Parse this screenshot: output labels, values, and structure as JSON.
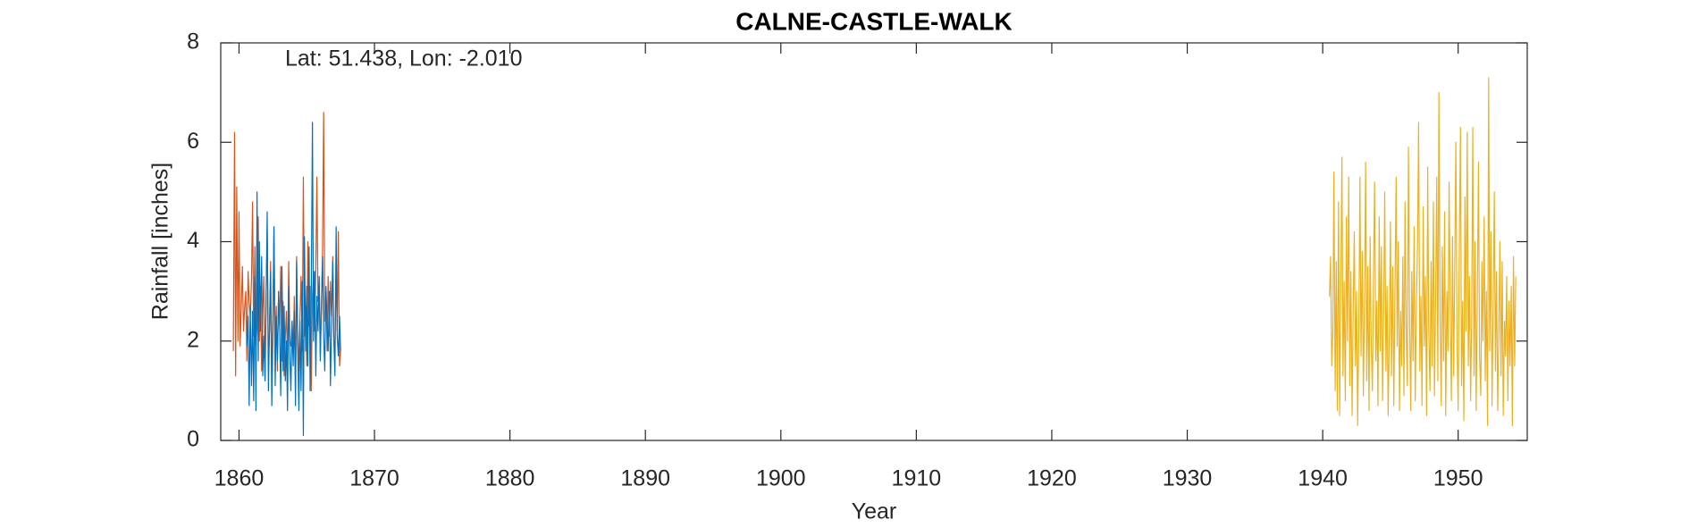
{
  "chart_data": {
    "type": "line",
    "title": "CALNE-CASTLE-WALK",
    "annotation": "Lat: 51.438, Lon: -2.010",
    "xlabel": "Year",
    "ylabel": "Rainfall [inches]",
    "xlim": [
      1858.65,
      1955.1
    ],
    "ylim": [
      0,
      8
    ],
    "xticks": [
      1860,
      1870,
      1880,
      1890,
      1900,
      1910,
      1920,
      1930,
      1940,
      1950
    ],
    "yticks": [
      0,
      2,
      4,
      6,
      8
    ],
    "grid": false,
    "box": true,
    "series": [
      {
        "color": "#D95319",
        "x": [
          1859.58,
          1859.67,
          1859.75,
          1859.83,
          1859.92,
          1860,
          1860.08,
          1860.17,
          1860.25,
          1860.33,
          1860.42,
          1860.5,
          1860.58,
          1860.67,
          1860.75,
          1860.83,
          1860.92,
          1861,
          1861.08,
          1861.17,
          1861.25,
          1861.33,
          1861.42,
          1861.5,
          1861.58,
          1861.67,
          1861.75,
          1861.83,
          1861.92,
          1862,
          1862.08,
          1862.17,
          1862.25,
          1862.33,
          1862.42,
          1862.5,
          1862.58,
          1862.67,
          1862.75,
          1862.83,
          1862.92,
          1863,
          1863.08,
          1863.17,
          1863.25,
          1863.33,
          1863.42,
          1863.5,
          1863.58,
          1863.67,
          1863.75,
          1863.83,
          1863.92,
          1864,
          1864.08,
          1864.17,
          1864.25,
          1864.33,
          1864.42,
          1864.5,
          1864.58,
          1864.67,
          1864.75,
          1864.83,
          1864.92,
          1865,
          1865.08,
          1865.17,
          1865.25,
          1865.33,
          1865.42,
          1865.5,
          1865.58,
          1865.67,
          1865.75,
          1865.83,
          1865.92,
          1866,
          1866.08,
          1866.17,
          1866.25,
          1866.33,
          1866.42,
          1866.5,
          1866.58,
          1866.67,
          1866.75,
          1866.83,
          1866.92,
          1867,
          1867.08,
          1867.17,
          1867.25,
          1867.33,
          1867.42,
          1867.5
        ],
        "values": [
          1.8,
          6.2,
          1.3,
          5.1,
          2.0,
          4.6,
          1.9,
          2.7,
          3.5,
          2.2,
          2.7,
          3.0,
          1.6,
          3.4,
          2.8,
          2.5,
          3.2,
          4.8,
          2.1,
          3.9,
          1.9,
          2.3,
          4.5,
          2.0,
          3.1,
          1.4,
          2.6,
          3.3,
          1.2,
          2.9,
          4.2,
          1.5,
          2.2,
          3.6,
          1.1,
          2.4,
          4.3,
          1.8,
          2.7,
          1.4,
          3.0,
          2.3,
          3.5,
          1.6,
          2.8,
          1.3,
          2.1,
          2.6,
          1.5,
          3.6,
          2.0,
          1.9,
          2.4,
          1.7,
          2.9,
          1.1,
          3.7,
          2.2,
          1.4,
          2.5,
          3.3,
          1.8,
          5.3,
          2.1,
          2.7,
          1.5,
          4.0,
          2.3,
          3.1,
          1.0,
          2.9,
          3.4,
          2.2,
          3.5,
          5.3,
          2.8,
          3.2,
          1.7,
          2.6,
          3.9,
          6.6,
          2.4,
          3.0,
          1.8,
          3.3,
          2.1,
          3.2,
          2.5,
          3.7,
          2.0,
          1.8,
          3.4,
          2.2,
          4.2,
          1.5,
          1.8
        ]
      },
      {
        "color": "#0072BD",
        "x": [
          1860.58,
          1860.67,
          1860.75,
          1860.83,
          1860.92,
          1861,
          1861.08,
          1861.17,
          1861.25,
          1861.33,
          1861.42,
          1861.5,
          1861.58,
          1861.67,
          1861.75,
          1861.83,
          1861.92,
          1862,
          1862.08,
          1862.17,
          1862.25,
          1862.33,
          1862.42,
          1862.5,
          1862.58,
          1862.67,
          1862.75,
          1862.83,
          1862.92,
          1863,
          1863.08,
          1863.17,
          1863.25,
          1863.33,
          1863.42,
          1863.5,
          1863.58,
          1863.67,
          1863.75,
          1863.83,
          1863.92,
          1864,
          1864.08,
          1864.17,
          1864.25,
          1864.33,
          1864.42,
          1864.5,
          1864.58,
          1864.67,
          1864.75,
          1864.83,
          1864.92,
          1865,
          1865.08,
          1865.17,
          1865.25,
          1865.33,
          1865.42,
          1865.5,
          1865.58,
          1865.67,
          1865.75,
          1865.83,
          1865.92,
          1866,
          1866.08,
          1866.17,
          1866.25,
          1866.33,
          1866.42,
          1866.5,
          1866.58,
          1866.67,
          1866.75,
          1866.83,
          1866.92,
          1867,
          1867.08,
          1867.17,
          1867.25,
          1867.33,
          1867.42,
          1867.5
        ],
        "values": [
          1.9,
          2.5,
          0.7,
          2.7,
          1.1,
          2.6,
          0.8,
          3.3,
          0.6,
          5.0,
          1.6,
          4.0,
          2.2,
          3.7,
          1.3,
          2.1,
          1.2,
          2.8,
          4.6,
          1.0,
          2.3,
          3.4,
          0.7,
          2.1,
          4.3,
          1.1,
          2.5,
          1.6,
          3.0,
          2.2,
          0.9,
          3.5,
          1.4,
          2.7,
          1.2,
          2.0,
          0.6,
          3.1,
          1.7,
          1.0,
          2.4,
          1.5,
          2.6,
          0.7,
          3.6,
          1.9,
          0.6,
          2.4,
          1.0,
          3.2,
          0.1,
          4.1,
          1.8,
          3.1,
          1.5,
          3.9,
          1.0,
          2.8,
          6.4,
          2.0,
          3.4,
          1.3,
          2.9,
          2.2,
          3.3,
          1.6,
          2.7,
          3.7,
          2.1,
          1.4,
          3.1,
          2.4,
          1.8,
          3.0,
          1.1,
          2.3,
          3.6,
          2.0,
          1.3,
          4.3,
          2.1,
          1.7,
          2.5,
          1.8
        ]
      },
      {
        "color": "#EDB120",
        "x": [
          1940.5,
          1940.58,
          1940.67,
          1940.75,
          1940.83,
          1940.92,
          1941,
          1941.08,
          1941.17,
          1941.25,
          1941.33,
          1941.42,
          1941.5,
          1941.58,
          1941.67,
          1941.75,
          1941.83,
          1941.92,
          1942,
          1942.08,
          1942.17,
          1942.25,
          1942.33,
          1942.42,
          1942.5,
          1942.58,
          1942.67,
          1942.75,
          1942.83,
          1942.92,
          1943,
          1943.08,
          1943.17,
          1943.25,
          1943.33,
          1943.42,
          1943.5,
          1943.58,
          1943.67,
          1943.75,
          1943.83,
          1943.92,
          1944,
          1944.08,
          1944.17,
          1944.25,
          1944.33,
          1944.42,
          1944.5,
          1944.58,
          1944.67,
          1944.75,
          1944.83,
          1944.92,
          1945,
          1945.08,
          1945.17,
          1945.25,
          1945.33,
          1945.42,
          1945.5,
          1945.58,
          1945.67,
          1945.75,
          1945.83,
          1945.92,
          1946,
          1946.08,
          1946.17,
          1946.25,
          1946.33,
          1946.42,
          1946.5,
          1946.58,
          1946.67,
          1946.75,
          1946.83,
          1946.92,
          1947,
          1947.08,
          1947.17,
          1947.25,
          1947.33,
          1947.42,
          1947.5,
          1947.58,
          1947.67,
          1947.75,
          1947.83,
          1947.92,
          1948,
          1948.08,
          1948.17,
          1948.25,
          1948.33,
          1948.42,
          1948.5,
          1948.58,
          1948.67,
          1948.75,
          1948.83,
          1948.92,
          1949,
          1949.08,
          1949.17,
          1949.25,
          1949.33,
          1949.42,
          1949.5,
          1949.58,
          1949.67,
          1949.75,
          1949.83,
          1949.92,
          1950,
          1950.08,
          1950.17,
          1950.25,
          1950.33,
          1950.42,
          1950.5,
          1950.58,
          1950.67,
          1950.75,
          1950.83,
          1950.92,
          1951,
          1951.08,
          1951.17,
          1951.25,
          1951.33,
          1951.42,
          1951.5,
          1951.58,
          1951.67,
          1951.75,
          1951.83,
          1951.92,
          1952,
          1952.08,
          1952.17,
          1952.25,
          1952.33,
          1952.42,
          1952.5,
          1952.58,
          1952.67,
          1952.75,
          1952.83,
          1952.92,
          1953,
          1953.08,
          1953.17,
          1953.25,
          1953.33,
          1953.42,
          1953.5,
          1953.58,
          1953.67,
          1953.75,
          1953.83,
          1953.92,
          1954,
          1954.08,
          1954.17,
          1954.25
        ],
        "values": [
          2.9,
          3.7,
          1.5,
          2.2,
          5.4,
          1.0,
          3.6,
          0.6,
          4.8,
          0.5,
          2.9,
          5.7,
          1.3,
          3.2,
          0.8,
          4.5,
          2.0,
          5.3,
          1.1,
          3.4,
          0.5,
          2.6,
          4.2,
          1.5,
          3.0,
          0.3,
          2.3,
          5.3,
          1.7,
          3.8,
          0.9,
          2.7,
          5.6,
          1.2,
          3.5,
          0.6,
          4.1,
          2.0,
          1.0,
          3.3,
          5.2,
          1.6,
          2.8,
          0.7,
          4.5,
          1.8,
          3.9,
          0.8,
          2.5,
          5.0,
          1.4,
          3.1,
          0.5,
          2.2,
          4.4,
          1.3,
          3.5,
          0.7,
          2.9,
          5.3,
          1.9,
          4.0,
          0.6,
          2.6,
          1.5,
          3.7,
          0.9,
          4.8,
          2.1,
          1.1,
          5.9,
          2.3,
          0.6,
          3.4,
          1.6,
          4.3,
          0.8,
          2.8,
          3.9,
          6.4,
          1.4,
          2.9,
          0.7,
          4.7,
          1.9,
          3.3,
          0.5,
          5.5,
          2.2,
          1.0,
          3.6,
          1.5,
          4.8,
          0.9,
          2.7,
          5.3,
          1.2,
          7.0,
          2.4,
          0.7,
          3.9,
          1.6,
          4.6,
          0.5,
          3.0,
          1.8,
          5.2,
          2.5,
          0.8,
          4.1,
          1.3,
          3.5,
          6.0,
          1.9,
          0.6,
          3.7,
          6.3,
          1.1,
          2.8,
          0.4,
          4.9,
          2.2,
          6.2,
          1.5,
          3.3,
          0.8,
          2.5,
          6.3,
          1.3,
          4.0,
          0.6,
          3.1,
          5.6,
          1.7,
          0.9,
          3.6,
          2.0,
          4.5,
          1.2,
          3.0,
          0.3,
          7.3,
          1.8,
          4.2,
          0.7,
          2.6,
          5.0,
          1.4,
          3.4,
          0.6,
          2.1,
          4.0,
          1.3,
          3.6,
          0.5,
          2.4,
          1.7,
          3.3,
          0.8,
          2.8,
          1.5,
          3.1,
          0.3,
          3.7,
          1.5,
          3.3
        ]
      }
    ]
  }
}
